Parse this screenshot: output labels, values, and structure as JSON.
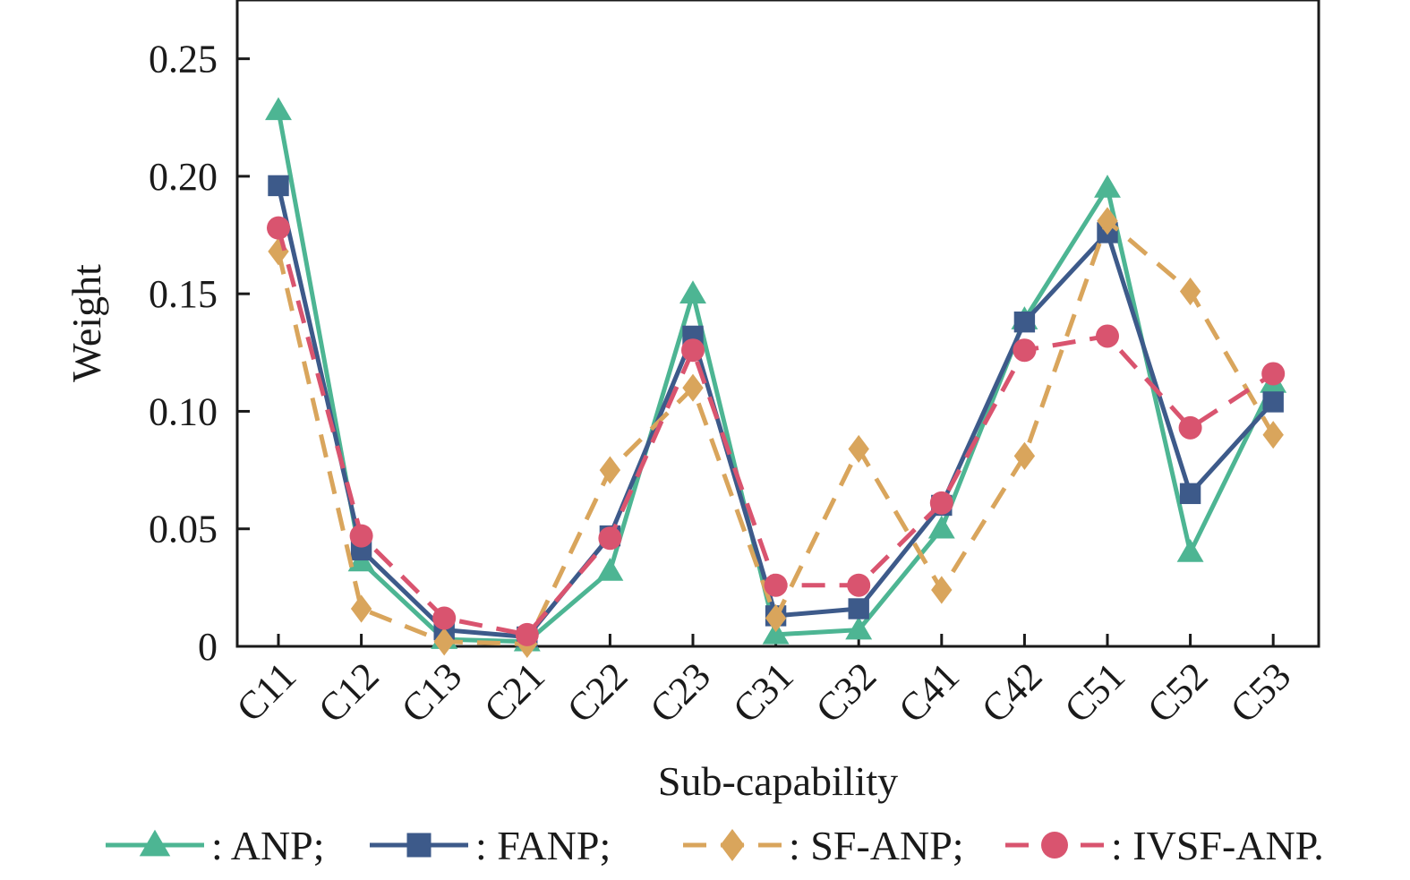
{
  "chart_data": {
    "type": "line",
    "title": "",
    "xlabel": "Sub-capability",
    "ylabel": "Weight",
    "categories": [
      "C11",
      "C12",
      "C13",
      "C21",
      "C22",
      "C23",
      "C31",
      "C32",
      "C41",
      "C42",
      "C51",
      "C52",
      "C53"
    ],
    "ylim": [
      0,
      0.275
    ],
    "yticks": [
      0,
      0.05,
      0.1,
      0.15,
      0.2,
      0.25
    ],
    "ytick_labels": [
      "0",
      "0.05",
      "0.10",
      "0.15",
      "0.20",
      "0.25"
    ],
    "legend_position": "bottom",
    "series": [
      {
        "name": "ANP",
        "legend_label": ": ANP;",
        "color": "#4db593",
        "marker": "triangle",
        "dashed": false,
        "values": [
          0.228,
          0.036,
          0.003,
          0.002,
          0.032,
          0.15,
          0.005,
          0.007,
          0.05,
          0.139,
          0.195,
          0.04,
          0.112
        ]
      },
      {
        "name": "FANP",
        "legend_label": ": FANP;",
        "color": "#3d5a8a",
        "marker": "square",
        "dashed": false,
        "values": [
          0.196,
          0.041,
          0.007,
          0.004,
          0.047,
          0.132,
          0.013,
          0.016,
          0.06,
          0.138,
          0.176,
          0.065,
          0.104
        ]
      },
      {
        "name": "SF-ANP",
        "legend_label": ": SF-ANP;",
        "color": "#d9a55c",
        "marker": "diamond",
        "dashed": true,
        "values": [
          0.168,
          0.016,
          0.002,
          0.001,
          0.075,
          0.11,
          0.012,
          0.084,
          0.024,
          0.081,
          0.181,
          0.151,
          0.09
        ]
      },
      {
        "name": "IVSF-ANP",
        "legend_label": ": IVSF-ANP.",
        "color": "#d9546f",
        "marker": "circle",
        "dashed": true,
        "values": [
          0.178,
          0.047,
          0.012,
          0.005,
          0.046,
          0.126,
          0.026,
          0.026,
          0.061,
          0.126,
          0.132,
          0.093,
          0.116
        ]
      }
    ]
  }
}
